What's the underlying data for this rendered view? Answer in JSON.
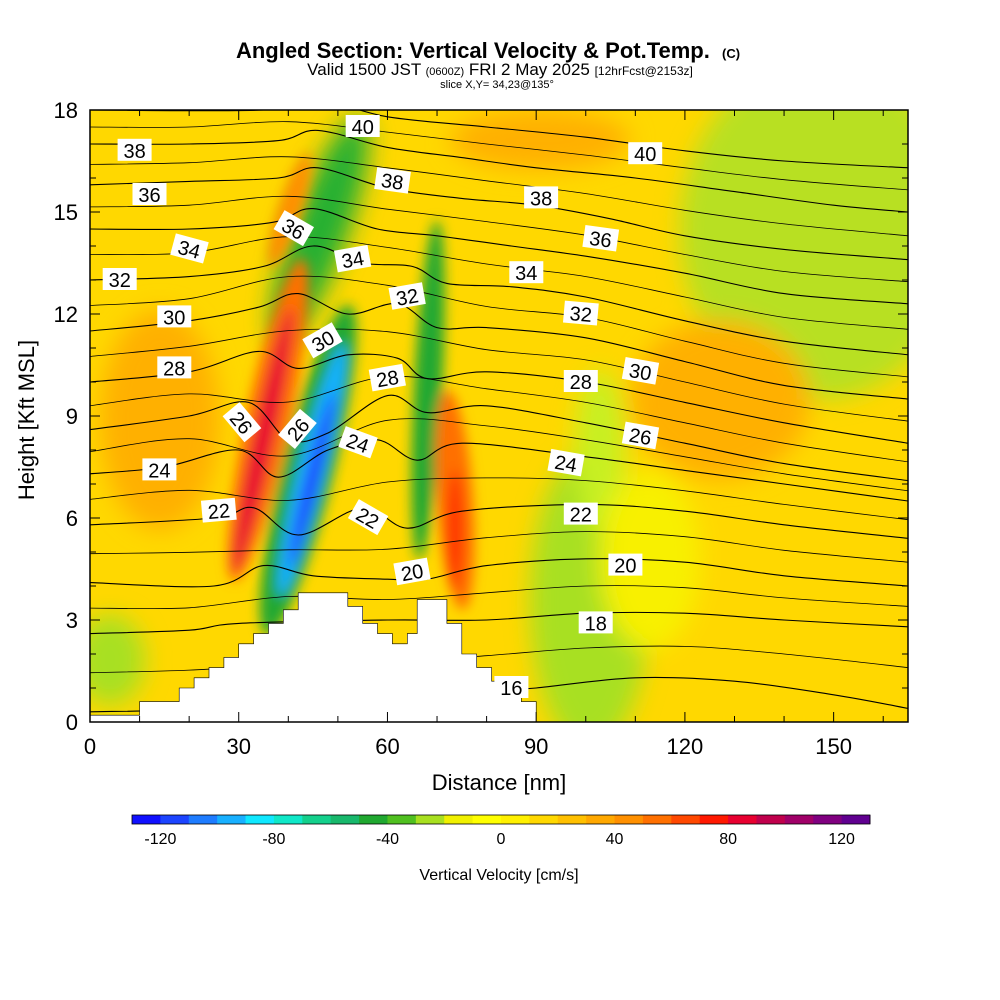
{
  "header": {
    "title_main": "Angled Section: Vertical Velocity & Pot.Temp.",
    "title_tag": "(C)",
    "valid_prefix": "Valid 1500 JST",
    "valid_zulu": "(0600Z)",
    "valid_date": "FRI 2 May 2025",
    "forecast_tag": "[12hrFcst@2153z]",
    "slice": "slice X,Y= 34,23@135°"
  },
  "chart_data": {
    "type": "heatmap",
    "xlabel": "Distance [nm]",
    "ylabel": "Height [Kft MSL]",
    "xlim": [
      0,
      165
    ],
    "ylim": [
      0,
      18
    ],
    "x_ticks": [
      0,
      30,
      60,
      90,
      120,
      150
    ],
    "y_ticks": [
      0,
      3,
      6,
      9,
      12,
      15,
      18
    ],
    "colorbar": {
      "label": "Vertical Velocity [cm/s]",
      "range": [
        -130,
        130
      ],
      "step": 10,
      "tick_values": [
        -120,
        -80,
        -40,
        0,
        40,
        80,
        120
      ],
      "colors": [
        "#1010ff",
        "#1c44ff",
        "#1e7cff",
        "#18b0ff",
        "#10e8ff",
        "#10e8c8",
        "#14d08c",
        "#18b86c",
        "#20a830",
        "#50c020",
        "#a8e020",
        "#f0f000",
        "#ffff00",
        "#fff000",
        "#ffd800",
        "#ffc000",
        "#ffa800",
        "#ff9000",
        "#ff7000",
        "#ff4800",
        "#ff1800",
        "#e80030",
        "#c0004c",
        "#a00068",
        "#800080",
        "#600090"
      ]
    },
    "terrain_kft": [
      [
        0,
        0.2
      ],
      [
        10,
        0.2
      ],
      [
        10,
        0.6
      ],
      [
        18,
        0.6
      ],
      [
        18,
        1.0
      ],
      [
        21,
        1.0
      ],
      [
        21,
        1.3
      ],
      [
        24,
        1.3
      ],
      [
        24,
        1.6
      ],
      [
        27,
        1.6
      ],
      [
        27,
        1.9
      ],
      [
        30,
        1.9
      ],
      [
        30,
        2.3
      ],
      [
        33,
        2.3
      ],
      [
        33,
        2.6
      ],
      [
        36,
        2.6
      ],
      [
        36,
        2.9
      ],
      [
        39,
        2.9
      ],
      [
        39,
        3.3
      ],
      [
        42,
        3.3
      ],
      [
        42,
        3.8
      ],
      [
        52,
        3.8
      ],
      [
        52,
        3.4
      ],
      [
        55,
        3.4
      ],
      [
        55,
        2.9
      ],
      [
        58,
        2.9
      ],
      [
        58,
        2.6
      ],
      [
        61,
        2.6
      ],
      [
        61,
        2.3
      ],
      [
        64,
        2.3
      ],
      [
        64,
        2.6
      ],
      [
        66,
        2.6
      ],
      [
        66,
        3.6
      ],
      [
        72,
        3.6
      ],
      [
        72,
        2.9
      ],
      [
        75,
        2.9
      ],
      [
        75,
        2.0
      ],
      [
        78,
        2.0
      ],
      [
        78,
        1.6
      ],
      [
        81,
        1.6
      ],
      [
        81,
        1.2
      ],
      [
        84,
        1.2
      ],
      [
        84,
        0.8
      ],
      [
        87,
        0.8
      ],
      [
        87,
        0.6
      ],
      [
        90,
        0.6
      ],
      [
        90,
        0.0
      ]
    ],
    "theta_isotherms": [
      {
        "value": 16,
        "pts": [
          [
            0,
            0.3
          ],
          [
            20,
            0.35
          ],
          [
            40,
            0.45
          ],
          [
            60,
            0.5
          ],
          [
            80,
            0.9
          ],
          [
            90,
            1.0
          ],
          [
            110,
            1.3
          ],
          [
            130,
            1.2
          ],
          [
            150,
            0.8
          ],
          [
            165,
            0.4
          ]
        ]
      },
      {
        "value": 18,
        "pts": [
          [
            0,
            2.6
          ],
          [
            20,
            2.7
          ],
          [
            30,
            2.9
          ],
          [
            60,
            3.0
          ],
          [
            80,
            3.0
          ],
          [
            100,
            3.2
          ],
          [
            120,
            3.2
          ],
          [
            140,
            3.0
          ],
          [
            165,
            2.8
          ]
        ]
      },
      {
        "value": 20,
        "pts": [
          [
            0,
            4.1
          ],
          [
            25,
            4.0
          ],
          [
            35,
            4.6
          ],
          [
            45,
            4.3
          ],
          [
            60,
            4.2
          ],
          [
            68,
            4.2
          ],
          [
            80,
            4.6
          ],
          [
            100,
            4.8
          ],
          [
            120,
            4.7
          ],
          [
            140,
            4.3
          ],
          [
            165,
            4.0
          ]
        ]
      },
      {
        "value": 22,
        "pts": [
          [
            0,
            5.8
          ],
          [
            25,
            6.0
          ],
          [
            33,
            6.3
          ],
          [
            42,
            5.5
          ],
          [
            55,
            6.3
          ],
          [
            64,
            5.7
          ],
          [
            75,
            6.2
          ],
          [
            100,
            6.4
          ],
          [
            120,
            6.2
          ],
          [
            140,
            5.8
          ],
          [
            165,
            5.4
          ]
        ]
      },
      {
        "value": 24,
        "pts": [
          [
            0,
            7.3
          ],
          [
            15,
            7.5
          ],
          [
            30,
            8.0
          ],
          [
            38,
            7.2
          ],
          [
            48,
            8.0
          ],
          [
            58,
            8.3
          ],
          [
            66,
            7.7
          ],
          [
            75,
            8.2
          ],
          [
            100,
            7.8
          ],
          [
            120,
            7.4
          ],
          [
            140,
            7.0
          ],
          [
            165,
            6.5
          ]
        ]
      },
      {
        "value": 26,
        "pts": [
          [
            0,
            8.6
          ],
          [
            20,
            9.0
          ],
          [
            32,
            9.4
          ],
          [
            40,
            8.3
          ],
          [
            48,
            8.5
          ],
          [
            60,
            9.6
          ],
          [
            68,
            9.1
          ],
          [
            80,
            9.3
          ],
          [
            100,
            8.8
          ],
          [
            120,
            8.2
          ],
          [
            140,
            7.6
          ],
          [
            165,
            7.1
          ]
        ]
      },
      {
        "value": 28,
        "pts": [
          [
            0,
            10.0
          ],
          [
            20,
            10.3
          ],
          [
            34,
            10.9
          ],
          [
            42,
            10.4
          ],
          [
            52,
            10.8
          ],
          [
            62,
            10.7
          ],
          [
            68,
            10.1
          ],
          [
            80,
            10.3
          ],
          [
            100,
            10.0
          ],
          [
            120,
            9.4
          ],
          [
            140,
            8.8
          ],
          [
            165,
            8.2
          ]
        ]
      },
      {
        "value": 30,
        "pts": [
          [
            0,
            11.5
          ],
          [
            20,
            11.8
          ],
          [
            34,
            12.2
          ],
          [
            42,
            12.6
          ],
          [
            52,
            12.0
          ],
          [
            62,
            12.3
          ],
          [
            70,
            11.6
          ],
          [
            80,
            11.6
          ],
          [
            100,
            11.3
          ],
          [
            120,
            10.6
          ],
          [
            140,
            9.9
          ],
          [
            165,
            9.5
          ]
        ]
      },
      {
        "value": 32,
        "pts": [
          [
            0,
            13.0
          ],
          [
            20,
            13.1
          ],
          [
            35,
            13.4
          ],
          [
            45,
            14.0
          ],
          [
            55,
            13.5
          ],
          [
            65,
            13.4
          ],
          [
            72,
            12.9
          ],
          [
            85,
            12.8
          ],
          [
            100,
            12.5
          ],
          [
            120,
            11.8
          ],
          [
            140,
            11.2
          ],
          [
            165,
            10.8
          ]
        ]
      },
      {
        "value": 34,
        "pts": [
          [
            0,
            14.5
          ],
          [
            20,
            14.5
          ],
          [
            37,
            14.7
          ],
          [
            45,
            15.1
          ],
          [
            58,
            14.5
          ],
          [
            70,
            14.3
          ],
          [
            85,
            14.0
          ],
          [
            100,
            13.7
          ],
          [
            120,
            13.2
          ],
          [
            140,
            12.6
          ],
          [
            165,
            12.3
          ]
        ]
      },
      {
        "value": 36,
        "pts": [
          [
            0,
            15.8
          ],
          [
            20,
            15.9
          ],
          [
            38,
            16.0
          ],
          [
            46,
            16.3
          ],
          [
            60,
            15.7
          ],
          [
            75,
            15.4
          ],
          [
            90,
            15.2
          ],
          [
            105,
            14.8
          ],
          [
            120,
            14.3
          ],
          [
            140,
            13.9
          ],
          [
            165,
            13.6
          ]
        ]
      },
      {
        "value": 38,
        "pts": [
          [
            0,
            17.0
          ],
          [
            20,
            17.0
          ],
          [
            38,
            17.1
          ],
          [
            46,
            17.4
          ],
          [
            60,
            16.9
          ],
          [
            75,
            16.6
          ],
          [
            90,
            16.3
          ],
          [
            110,
            16.0
          ],
          [
            130,
            15.6
          ],
          [
            150,
            15.2
          ],
          [
            165,
            15.0
          ]
        ]
      },
      {
        "value": 40,
        "pts": [
          [
            0,
            18.0
          ],
          [
            35,
            18.0
          ],
          [
            46,
            18.3
          ],
          [
            60,
            17.8
          ],
          [
            80,
            17.5
          ],
          [
            100,
            17.2
          ],
          [
            120,
            16.8
          ],
          [
            140,
            16.5
          ],
          [
            165,
            16.3
          ]
        ]
      }
    ],
    "theta_labels": [
      {
        "text": "38",
        "x": 9,
        "y": 16.8,
        "rot": 0
      },
      {
        "text": "36",
        "x": 12,
        "y": 15.5,
        "rot": 0
      },
      {
        "text": "34",
        "x": 20,
        "y": 13.9,
        "rot": 15
      },
      {
        "text": "32",
        "x": 6,
        "y": 13.0,
        "rot": 0
      },
      {
        "text": "30",
        "x": 17,
        "y": 11.9,
        "rot": 0
      },
      {
        "text": "28",
        "x": 17,
        "y": 10.4,
        "rot": 0
      },
      {
        "text": "24",
        "x": 14,
        "y": 7.4,
        "rot": 0
      },
      {
        "text": "22",
        "x": 26,
        "y": 6.2,
        "rot": -5
      },
      {
        "text": "26",
        "x": 30.5,
        "y": 8.8,
        "rot": 50
      },
      {
        "text": "36",
        "x": 41,
        "y": 14.5,
        "rot": 30
      },
      {
        "text": "30",
        "x": 47,
        "y": 11.2,
        "rot": -30
      },
      {
        "text": "26",
        "x": 42,
        "y": 8.6,
        "rot": -50
      },
      {
        "text": "40",
        "x": 55,
        "y": 17.5,
        "rot": 0
      },
      {
        "text": "38",
        "x": 61,
        "y": 15.9,
        "rot": 8
      },
      {
        "text": "34",
        "x": 53,
        "y": 13.6,
        "rot": -10
      },
      {
        "text": "32",
        "x": 64,
        "y": 12.5,
        "rot": -10
      },
      {
        "text": "28",
        "x": 60,
        "y": 10.1,
        "rot": -10
      },
      {
        "text": "24",
        "x": 54,
        "y": 8.2,
        "rot": 20
      },
      {
        "text": "22",
        "x": 56,
        "y": 6.0,
        "rot": 30
      },
      {
        "text": "20",
        "x": 65,
        "y": 4.4,
        "rot": -10
      },
      {
        "text": "16",
        "x": 85,
        "y": 1.0,
        "rot": 0
      },
      {
        "text": "38",
        "x": 91,
        "y": 15.4,
        "rot": 0
      },
      {
        "text": "34",
        "x": 88,
        "y": 13.2,
        "rot": 0
      },
      {
        "text": "40",
        "x": 112,
        "y": 16.7,
        "rot": 0
      },
      {
        "text": "36",
        "x": 103,
        "y": 14.2,
        "rot": 8
      },
      {
        "text": "32",
        "x": 99,
        "y": 12.0,
        "rot": 5
      },
      {
        "text": "28",
        "x": 99,
        "y": 10.0,
        "rot": 0
      },
      {
        "text": "30",
        "x": 111,
        "y": 10.3,
        "rot": 10
      },
      {
        "text": "26",
        "x": 111,
        "y": 8.4,
        "rot": 10
      },
      {
        "text": "24",
        "x": 96,
        "y": 7.6,
        "rot": 10
      },
      {
        "text": "22",
        "x": 99,
        "y": 6.1,
        "rot": 0
      },
      {
        "text": "20",
        "x": 108,
        "y": 4.6,
        "rot": 0
      },
      {
        "text": "18",
        "x": 102,
        "y": 2.9,
        "rot": 0
      }
    ]
  }
}
